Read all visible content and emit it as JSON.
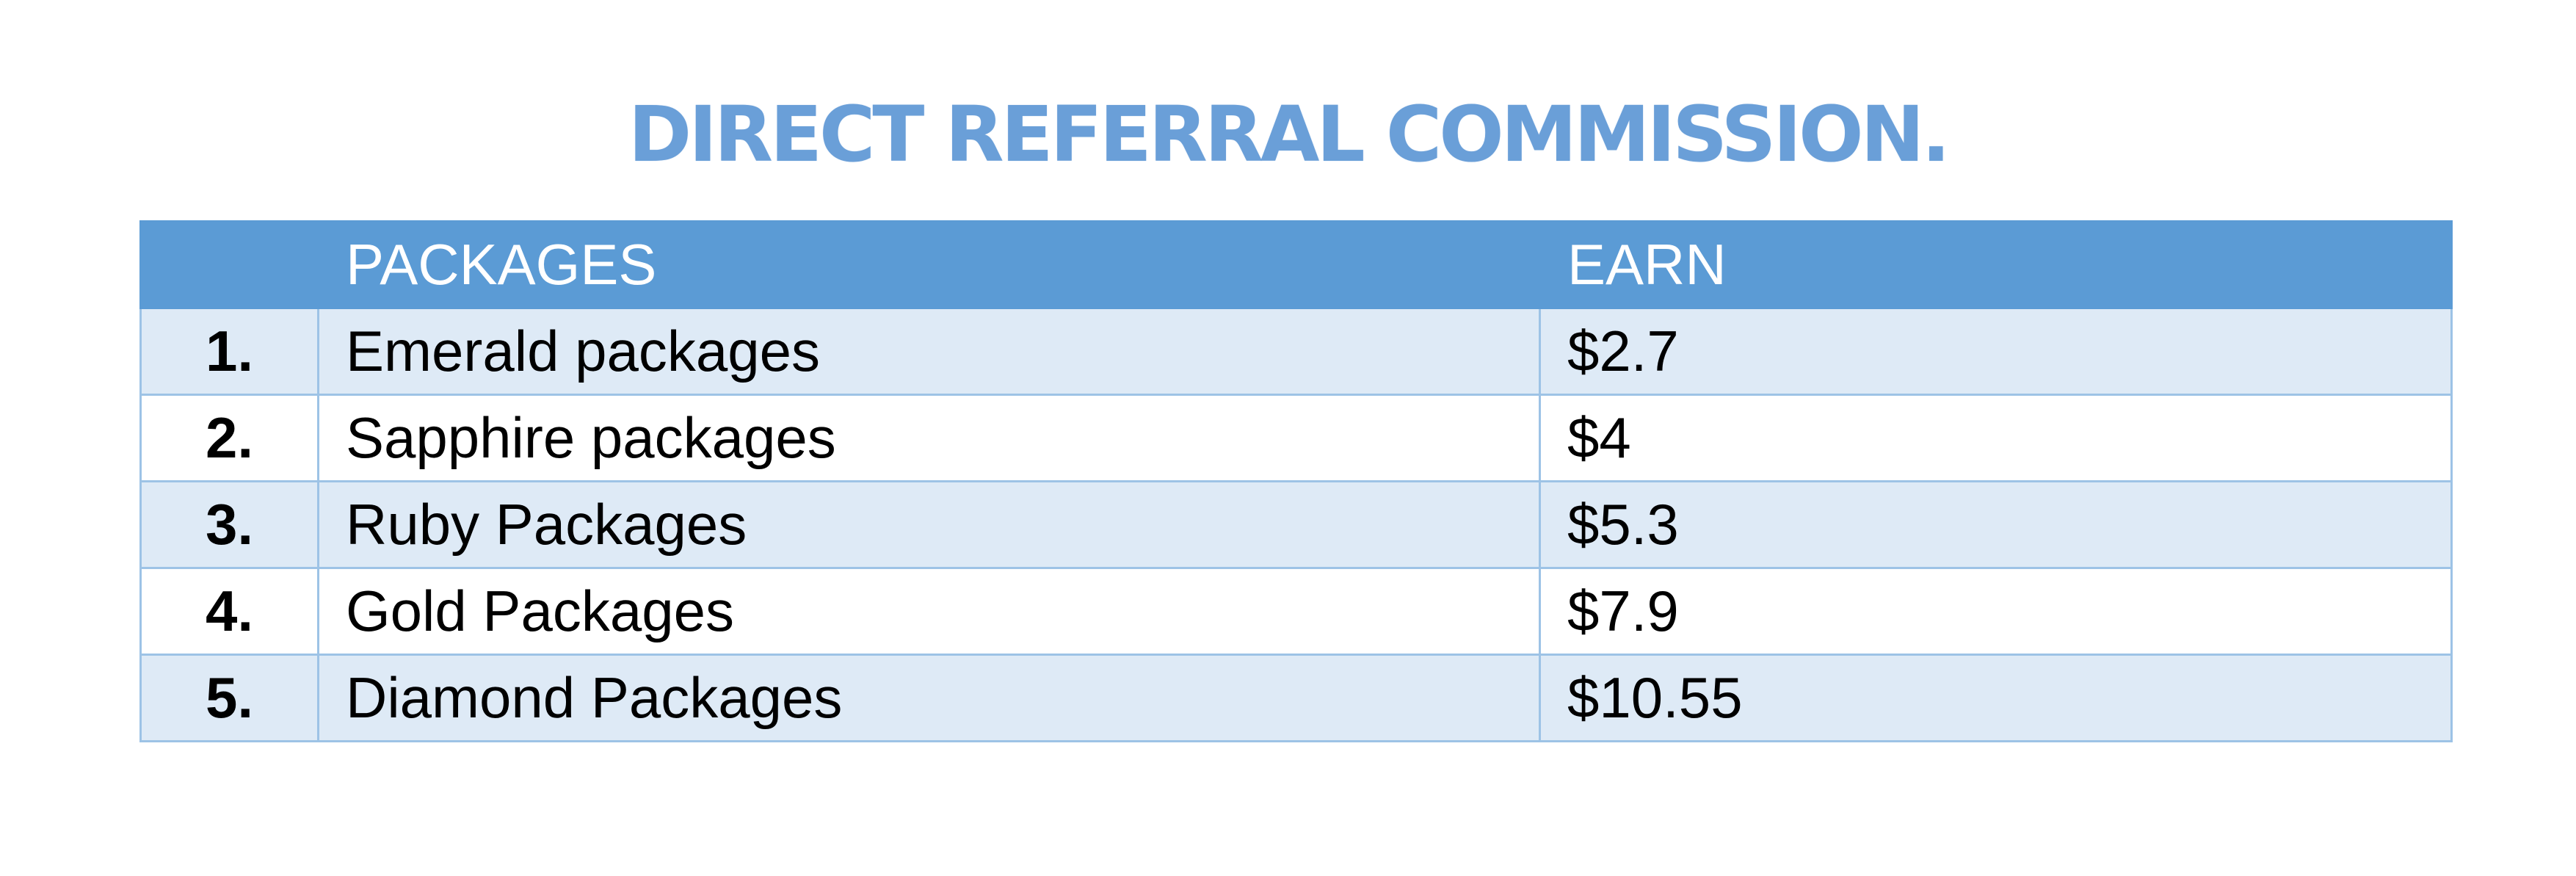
{
  "title": "DIRECT REFERRAL COMMISSION.",
  "table": {
    "headers": {
      "number": "",
      "packages": "PACKAGES",
      "earn": "EARN"
    },
    "rows": [
      {
        "number": "1.",
        "package": "Emerald packages",
        "earn": "$2.7"
      },
      {
        "number": "2.",
        "package": "Sapphire packages",
        "earn": "$4"
      },
      {
        "number": "3.",
        "package": "Ruby Packages",
        "earn": "$5.3"
      },
      {
        "number": "4.",
        "package": "Gold Packages",
        "earn": "$7.9"
      },
      {
        "number": "5.",
        "package": "Diamond Packages",
        "earn": "$10.55"
      }
    ]
  },
  "colors": {
    "title": "#6a9fd8",
    "header_background": "#5b9bd5",
    "header_text": "#ffffff",
    "banded_row": "#deeaf6",
    "plain_row": "#ffffff",
    "border": "#9dc3e6"
  }
}
